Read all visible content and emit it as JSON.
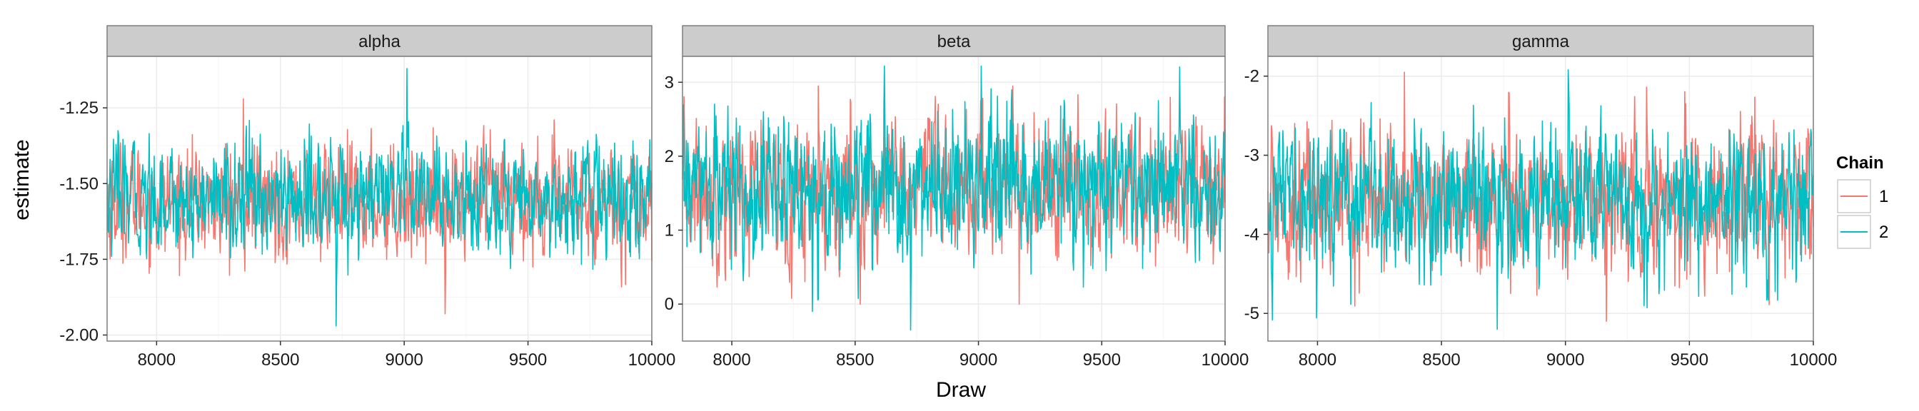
{
  "chart_data": {
    "type": "line",
    "xlabel": "Draw",
    "ylabel": "estimate",
    "grid": true,
    "legend": {
      "title": "Chain",
      "placement": "right",
      "entries": [
        "1",
        "2"
      ]
    },
    "colors": {
      "1": "#F8766D",
      "2": "#00BFC4",
      "panel_border": "#7f7f7f",
      "strip_bg": "#cccccc",
      "grid": "#ebebeb"
    },
    "x_range": [
      7800,
      10000
    ],
    "x_ticks": [
      8000,
      8500,
      9000,
      9500,
      10000
    ],
    "panels": [
      {
        "strip": "alpha",
        "ylim": [
          -2.02,
          -1.08
        ],
        "y_ticks": [
          -2.0,
          -1.75,
          -1.5,
          -1.25
        ],
        "y_tick_labels": [
          "-2.00",
          "-1.75",
          "-1.50",
          "-1.25"
        ],
        "series": [
          {
            "name": "1",
            "mean": -1.56,
            "sd": 0.085,
            "min": -1.93,
            "max": -1.22
          },
          {
            "name": "2",
            "mean": -1.55,
            "sd": 0.085,
            "min": -1.97,
            "max": -1.12
          }
        ]
      },
      {
        "strip": "beta",
        "ylim": [
          -0.5,
          3.35
        ],
        "y_ticks": [
          0,
          1,
          2,
          3
        ],
        "y_tick_labels": [
          "0",
          "1",
          "2",
          "3"
        ],
        "series": [
          {
            "name": "1",
            "mean": 1.55,
            "sd": 0.45,
            "min": 0.0,
            "max": 2.95
          },
          {
            "name": "2",
            "mean": 1.55,
            "sd": 0.45,
            "min": -0.35,
            "max": 3.22
          }
        ]
      },
      {
        "strip": "gamma",
        "ylim": [
          -5.35,
          -1.75
        ],
        "y_ticks": [
          -5,
          -4,
          -3,
          -2
        ],
        "y_tick_labels": [
          "-5",
          "-4",
          "-3",
          "-2"
        ],
        "series": [
          {
            "name": "1",
            "mean": -3.55,
            "sd": 0.42,
            "min": -5.1,
            "max": -1.95
          },
          {
            "name": "2",
            "mean": -3.55,
            "sd": 0.42,
            "min": -5.2,
            "max": -1.92
          }
        ]
      }
    ]
  }
}
